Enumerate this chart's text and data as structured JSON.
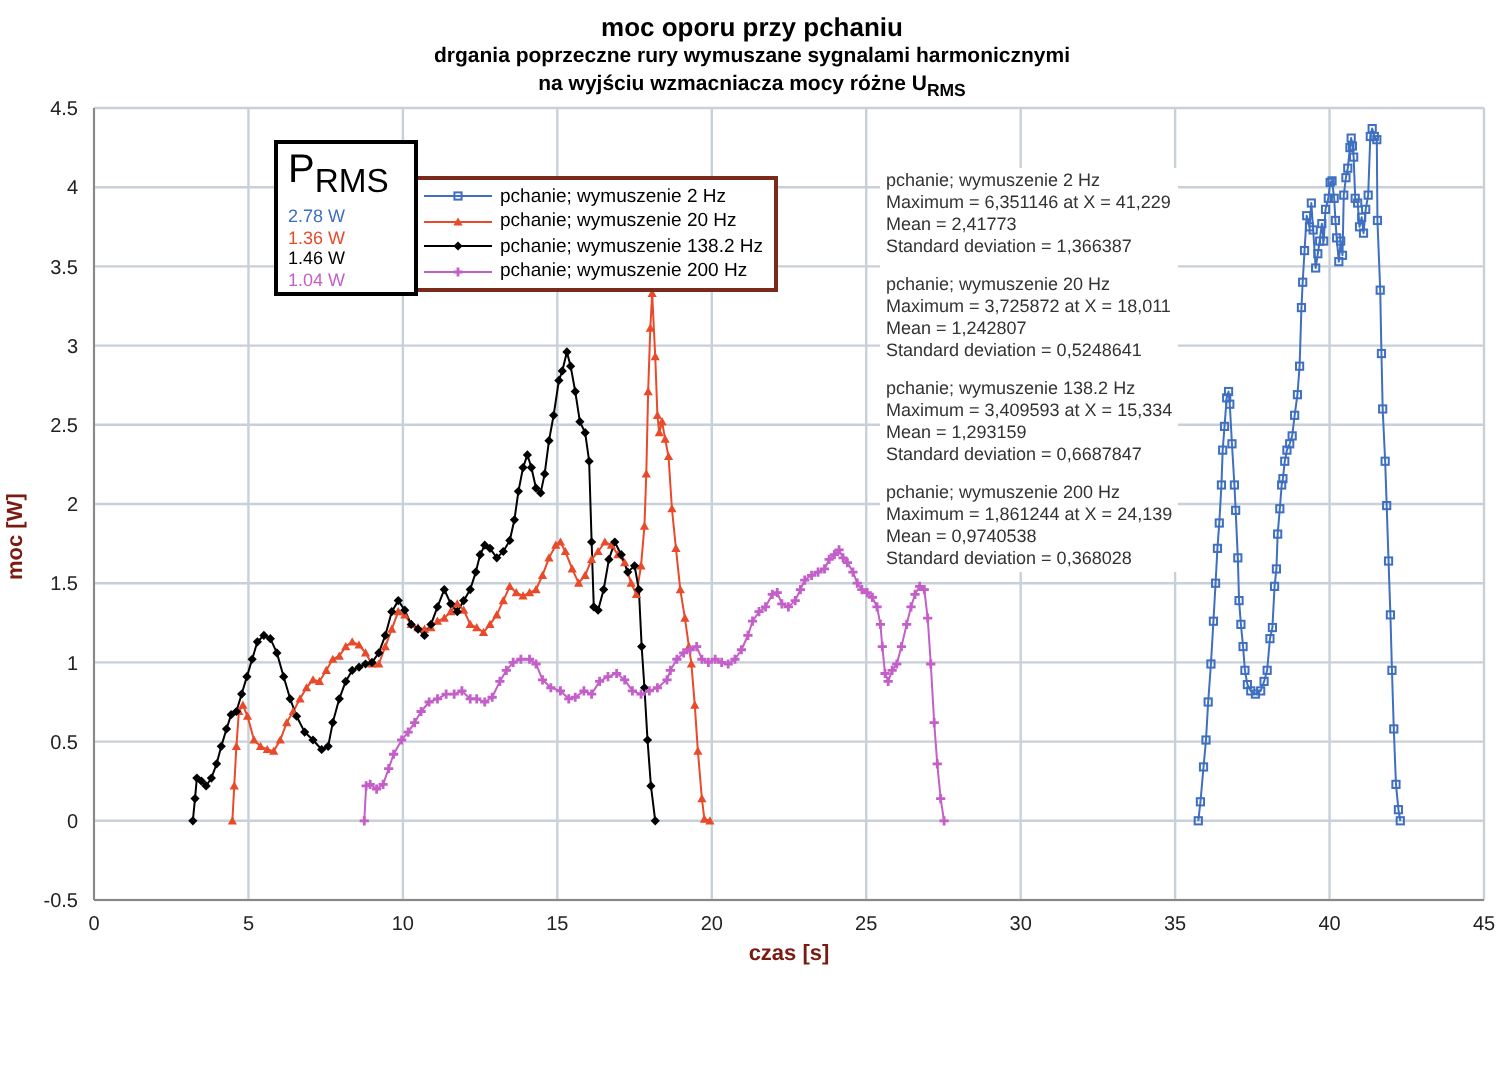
{
  "chart_data": {
    "type": "line",
    "title": "moc oporu przy pchaniu",
    "subtitle": "drgania poprzeczne rury wymuszane sygnalami harmonicznymi\nna wyjściu wzmacniacza mocy różne U$_{RMS}$",
    "xlabel": "czas [s]",
    "ylabel": "moc [W]",
    "xlim": [
      0,
      45
    ],
    "xticks": [
      0,
      5,
      10,
      15,
      20,
      25,
      30,
      35,
      40,
      45
    ],
    "ylim": [
      -0.5,
      4.5
    ],
    "yticks": [
      -0.5,
      0,
      0.5,
      1,
      1.5,
      2,
      2.5,
      3,
      3.5,
      4,
      4.5
    ],
    "grid": true,
    "legend": "top left",
    "line_style": "solid",
    "annotations": [
      "P$_{RMS}$",
      "2.78 W",
      "1.36 W",
      "1.46 W",
      "1.04 W",
      "pchanie; wymuszenie 2 Hz\nMaximum = 6,351146 at X = 41,229\nMean = 2,41773\nStandard deviation = 1,366387",
      "pchanie; wymuszenie 20 Hz\nMaximum = 3,725872 at X = 18,011\nMean = 1,242807\nStandard deviation = 0,5248641",
      "pchanie; wymuszenie 138.2 Hz\nMaximum = 3,409593 at X = 15,334\nMean = 1,293159\nStandard deviation = 0,6687847",
      "pchanie; wymuszenie 200 Hz\nMaximum = 1,861244 at X = 24,139\nMean = 0,9740538\nStandard deviation = 0,368028"
    ],
    "series": [
      {
        "name": "pchanie; wymuszenie 2 Hz",
        "color": "#3f6fc0",
        "marker": "square",
        "x": [
          35.75,
          35.82,
          35.92,
          36.0,
          36.07,
          36.16,
          36.24,
          36.31,
          36.37,
          36.43,
          36.5,
          36.54,
          36.6,
          36.67,
          36.73,
          36.77,
          36.84,
          36.92,
          36.96,
          37.03,
          37.07,
          37.13,
          37.2,
          37.26,
          37.34,
          37.45,
          37.6,
          37.77,
          37.88,
          37.98,
          38.07,
          38.15,
          38.22,
          38.28,
          38.32,
          38.39,
          38.45,
          38.49,
          38.55,
          38.62,
          38.71,
          38.79,
          38.87,
          38.96,
          39.03,
          39.09,
          39.13,
          39.19,
          39.26,
          39.35,
          39.41,
          39.47,
          39.55,
          39.62,
          39.68,
          39.75,
          39.81,
          39.87,
          39.96,
          40.02,
          40.08,
          40.15,
          40.19,
          40.23,
          40.3,
          40.36,
          40.42,
          40.46,
          40.53,
          40.59,
          40.66,
          40.7,
          40.74,
          40.78,
          40.83,
          40.91,
          40.97,
          41.04,
          41.1,
          41.17,
          41.25,
          41.32,
          41.38,
          41.45,
          41.53,
          41.55,
          41.64,
          41.68,
          41.72,
          41.8,
          41.85,
          41.91,
          41.97,
          42.02,
          42.08,
          42.15,
          42.23,
          42.29
        ],
        "values": [
          0,
          0.12,
          0.34,
          0.51,
          0.75,
          0.99,
          1.26,
          1.5,
          1.72,
          1.88,
          2.12,
          2.34,
          2.49,
          2.67,
          2.71,
          2.63,
          2.38,
          2.12,
          1.96,
          1.66,
          1.39,
          1.24,
          1.1,
          0.95,
          0.86,
          0.82,
          0.8,
          0.82,
          0.88,
          0.95,
          1.15,
          1.22,
          1.48,
          1.59,
          1.81,
          1.97,
          2.12,
          2.16,
          2.27,
          2.34,
          2.38,
          2.43,
          2.56,
          2.69,
          2.87,
          3.24,
          3.4,
          3.6,
          3.82,
          3.75,
          3.9,
          3.73,
          3.49,
          3.58,
          3.66,
          3.77,
          3.66,
          3.86,
          3.93,
          4.03,
          4.04,
          3.93,
          3.79,
          3.68,
          3.53,
          3.66,
          3.57,
          3.95,
          4.06,
          4.12,
          4.25,
          4.31,
          4.26,
          4.19,
          3.93,
          3.9,
          3.75,
          3.81,
          3.71,
          3.86,
          3.95,
          4.32,
          4.37,
          4.32,
          4.3,
          3.79,
          3.35,
          2.95,
          2.6,
          2.27,
          1.99,
          1.64,
          1.3,
          0.95,
          0.58,
          0.23,
          0.07,
          0
        ]
      },
      {
        "name": "pchanie; wymuszenie 20 Hz",
        "color": "#e84a2a",
        "marker": "triangle",
        "x": [
          4.48,
          4.54,
          4.61,
          4.69,
          4.82,
          4.97,
          5.18,
          5.39,
          5.61,
          5.82,
          6.03,
          6.24,
          6.45,
          6.67,
          6.88,
          7.09,
          7.3,
          7.52,
          7.73,
          7.94,
          8.15,
          8.36,
          8.58,
          8.79,
          9.0,
          9.22,
          9.43,
          9.64,
          9.85,
          10.06,
          10.27,
          10.49,
          10.7,
          10.91,
          11.12,
          11.34,
          11.55,
          11.76,
          11.97,
          12.18,
          12.39,
          12.61,
          12.82,
          13.04,
          13.25,
          13.46,
          13.67,
          13.89,
          14.1,
          14.31,
          14.52,
          14.73,
          14.95,
          15.1,
          15.26,
          15.48,
          15.69,
          15.9,
          16.11,
          16.32,
          16.54,
          16.75,
          16.96,
          17.18,
          17.39,
          17.56,
          17.71,
          17.82,
          17.88,
          17.94,
          18.01,
          18.07,
          18.17,
          18.24,
          18.3,
          18.39,
          18.49,
          18.6,
          18.71,
          18.84,
          18.98,
          19.13,
          19.26,
          19.34,
          19.45,
          19.55,
          19.68,
          19.76,
          19.94
        ],
        "values": [
          0,
          0.22,
          0.47,
          0.69,
          0.73,
          0.66,
          0.51,
          0.47,
          0.45,
          0.44,
          0.51,
          0.62,
          0.69,
          0.77,
          0.84,
          0.89,
          0.88,
          0.95,
          1.02,
          1.04,
          1.1,
          1.13,
          1.11,
          1.06,
          0.99,
          0.99,
          1.1,
          1.21,
          1.32,
          1.3,
          1.24,
          1.22,
          1.21,
          1.22,
          1.26,
          1.28,
          1.32,
          1.37,
          1.33,
          1.24,
          1.22,
          1.19,
          1.24,
          1.3,
          1.39,
          1.48,
          1.44,
          1.42,
          1.44,
          1.46,
          1.55,
          1.66,
          1.74,
          1.76,
          1.7,
          1.59,
          1.5,
          1.55,
          1.65,
          1.7,
          1.76,
          1.74,
          1.68,
          1.63,
          1.5,
          1.43,
          1.61,
          1.86,
          2.19,
          2.71,
          3.11,
          3.33,
          2.93,
          2.56,
          2.45,
          2.52,
          2.41,
          2.3,
          1.97,
          1.72,
          1.46,
          1.28,
          1.1,
          0.99,
          0.73,
          0.44,
          0.14,
          0.01,
          0
        ]
      },
      {
        "name": "pchanie; wymuszenie 138.2 Hz",
        "color": "#000000",
        "marker": "diamond",
        "x": [
          3.2,
          3.27,
          3.33,
          3.48,
          3.63,
          3.8,
          3.97,
          4.12,
          4.29,
          4.44,
          4.61,
          4.78,
          4.95,
          5.12,
          5.29,
          5.5,
          5.71,
          5.92,
          6.14,
          6.35,
          6.56,
          6.82,
          7.09,
          7.37,
          7.58,
          7.73,
          7.94,
          8.15,
          8.36,
          8.58,
          8.79,
          9.0,
          9.22,
          9.43,
          9.64,
          9.85,
          10.06,
          10.27,
          10.49,
          10.7,
          10.91,
          11.12,
          11.34,
          11.55,
          11.76,
          11.97,
          12.18,
          12.36,
          12.5,
          12.65,
          12.82,
          13.04,
          13.25,
          13.46,
          13.61,
          13.74,
          13.89,
          14.03,
          14.16,
          14.31,
          14.46,
          14.59,
          14.73,
          14.88,
          15.05,
          15.16,
          15.31,
          15.43,
          15.58,
          15.73,
          15.9,
          16.03,
          16.11,
          16.18,
          16.32,
          16.5,
          16.67,
          16.86,
          17.07,
          17.28,
          17.5,
          17.64,
          17.73,
          17.82,
          17.92,
          18.03,
          18.17
        ],
        "values": [
          0,
          0.14,
          0.27,
          0.25,
          0.22,
          0.27,
          0.36,
          0.47,
          0.58,
          0.67,
          0.69,
          0.8,
          0.91,
          1.02,
          1.13,
          1.17,
          1.15,
          1.06,
          0.91,
          0.77,
          0.66,
          0.56,
          0.51,
          0.45,
          0.47,
          0.62,
          0.77,
          0.88,
          0.95,
          0.97,
          0.99,
          1.0,
          1.06,
          1.17,
          1.32,
          1.39,
          1.33,
          1.24,
          1.21,
          1.17,
          1.24,
          1.35,
          1.46,
          1.37,
          1.32,
          1.39,
          1.46,
          1.57,
          1.68,
          1.74,
          1.72,
          1.66,
          1.7,
          1.77,
          1.9,
          2.08,
          2.23,
          2.31,
          2.23,
          2.1,
          2.07,
          2.19,
          2.4,
          2.56,
          2.78,
          2.84,
          2.96,
          2.87,
          2.71,
          2.52,
          2.45,
          2.27,
          1.76,
          1.35,
          1.33,
          1.46,
          1.65,
          1.76,
          1.68,
          1.57,
          1.61,
          1.46,
          1.1,
          0.84,
          0.51,
          0.22,
          0
        ]
      },
      {
        "name": "pchanie; wymuszenie 200 Hz",
        "color": "#c45ec8",
        "marker": "cross",
        "x": [
          8.75,
          8.81,
          8.94,
          9.15,
          9.36,
          9.54,
          9.7,
          9.96,
          10.17,
          10.38,
          10.59,
          10.85,
          11.12,
          11.4,
          11.66,
          11.91,
          12.18,
          12.39,
          12.65,
          12.89,
          13.14,
          13.35,
          13.57,
          13.82,
          14.1,
          14.31,
          14.52,
          14.79,
          15.1,
          15.37,
          15.58,
          15.86,
          16.11,
          16.37,
          16.64,
          16.92,
          17.18,
          17.43,
          17.71,
          17.98,
          18.24,
          18.55,
          18.66,
          18.87,
          19.09,
          19.3,
          19.51,
          19.68,
          19.89,
          20.11,
          20.32,
          20.53,
          20.75,
          20.96,
          21.17,
          21.32,
          21.53,
          21.74,
          21.96,
          22.12,
          22.27,
          22.48,
          22.7,
          22.87,
          23.01,
          23.23,
          23.44,
          23.65,
          23.8,
          23.97,
          24.12,
          24.25,
          24.39,
          24.57,
          24.71,
          24.86,
          25.03,
          25.2,
          25.35,
          25.46,
          25.52,
          25.61,
          25.71,
          25.84,
          25.99,
          26.14,
          26.31,
          26.45,
          26.58,
          26.73,
          26.88,
          26.99,
          27.09,
          27.2,
          27.3,
          27.41,
          27.52
        ],
        "values": [
          0,
          0.22,
          0.23,
          0.2,
          0.23,
          0.33,
          0.42,
          0.51,
          0.56,
          0.62,
          0.69,
          0.75,
          0.77,
          0.8,
          0.8,
          0.82,
          0.77,
          0.77,
          0.75,
          0.78,
          0.88,
          0.95,
          1.0,
          1.02,
          1.02,
          0.99,
          0.89,
          0.84,
          0.82,
          0.77,
          0.78,
          0.82,
          0.8,
          0.88,
          0.91,
          0.93,
          0.89,
          0.82,
          0.8,
          0.82,
          0.84,
          0.89,
          0.95,
          1.02,
          1.06,
          1.08,
          1.1,
          1.02,
          1.0,
          1.02,
          1.0,
          0.99,
          1.02,
          1.08,
          1.17,
          1.26,
          1.32,
          1.35,
          1.43,
          1.44,
          1.37,
          1.35,
          1.39,
          1.46,
          1.52,
          1.55,
          1.57,
          1.59,
          1.65,
          1.68,
          1.71,
          1.66,
          1.63,
          1.57,
          1.5,
          1.46,
          1.44,
          1.41,
          1.35,
          1.24,
          1.1,
          0.93,
          0.88,
          0.95,
          0.99,
          1.1,
          1.24,
          1.35,
          1.43,
          1.48,
          1.46,
          1.28,
          0.99,
          0.62,
          0.36,
          0.14,
          0
        ]
      }
    ]
  }
}
